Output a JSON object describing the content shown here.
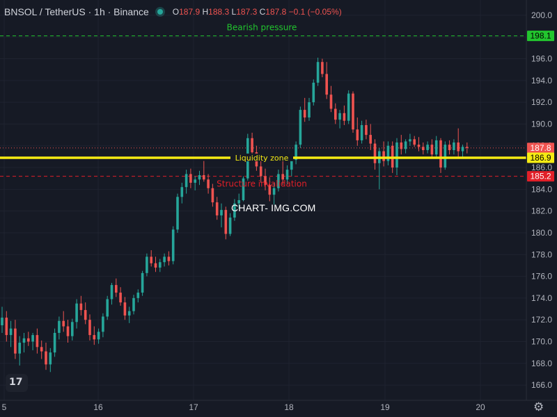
{
  "header": {
    "symbol": "BNSOL / TetherUS · 1h · Binance",
    "o_label": "O",
    "o_value": "187.9",
    "h_label": "H",
    "h_value": "188.3",
    "l_label": "L",
    "l_value": "187.3",
    "c_label": "C",
    "c_value": "187.8",
    "change": "−0.1 (−0.05%)",
    "status_icon": "market-open-dot"
  },
  "watermark": "CHART- IMG.COM",
  "logo_text": "17",
  "settings_icon": "gear-icon",
  "colors": {
    "background": "#161a25",
    "up": "#26a69a",
    "down": "#ef5350",
    "liquidity": "#f5eb13",
    "bearish": "#22c52e",
    "invalidation": "#e21f28"
  },
  "chart_data": {
    "type": "candlestick",
    "title": "BNSOL / TetherUS · 1h · Binance",
    "x_axis": {
      "ticks": [
        "5",
        "16",
        "17",
        "18",
        "19",
        "20"
      ]
    },
    "y_axis": {
      "range": [
        164.6,
        201.4
      ],
      "ticks": [
        "166.0",
        "168.0",
        "170.0",
        "172.0",
        "174.0",
        "176.0",
        "178.0",
        "180.0",
        "182.0",
        "184.0",
        "186.0",
        "188.0",
        "190.0",
        "192.0",
        "194.0",
        "196.0",
        "198.0",
        "200.0"
      ]
    },
    "price_labels": [
      {
        "value": "198.1",
        "price": 198.1,
        "color": "#22c52e",
        "text_color": "#000000"
      },
      {
        "value": "187.8",
        "price": 187.8,
        "color": "#ef5350",
        "text_color": "#ffffff"
      },
      {
        "value": "186.9",
        "price": 186.9,
        "color": "#f5eb13",
        "text_color": "#000000"
      },
      {
        "value": "185.2",
        "price": 185.2,
        "color": "#e21f28",
        "text_color": "#ffffff"
      }
    ],
    "levels": [
      {
        "label": "Bearish pressure",
        "price": 198.1,
        "style": "dashed",
        "color": "#22c52e"
      },
      {
        "label": "Liquidity zone",
        "price": 186.9,
        "style": "solid",
        "color": "#f5eb13"
      },
      {
        "label": "Structure invalidation",
        "price": 185.2,
        "style": "dashed",
        "color": "#e21f28"
      }
    ],
    "last_price": 187.8,
    "candles": [
      [
        171.5,
        173.2,
        170.8,
        172.2
      ],
      [
        172.2,
        172.8,
        170.0,
        170.6
      ],
      [
        170.6,
        171.9,
        169.5,
        171.2
      ],
      [
        171.2,
        172.0,
        168.4,
        168.9
      ],
      [
        168.9,
        170.5,
        167.8,
        169.9
      ],
      [
        169.9,
        170.8,
        169.0,
        170.3
      ],
      [
        170.3,
        170.9,
        169.6,
        170.0
      ],
      [
        170.0,
        170.8,
        169.2,
        170.6
      ],
      [
        170.6,
        171.2,
        168.9,
        169.5
      ],
      [
        169.5,
        170.1,
        168.4,
        169.1
      ],
      [
        169.1,
        169.9,
        167.4,
        167.9
      ],
      [
        167.9,
        169.4,
        167.2,
        169.0
      ],
      [
        169.0,
        171.2,
        168.6,
        170.8
      ],
      [
        170.8,
        172.3,
        170.2,
        171.9
      ],
      [
        171.9,
        172.8,
        170.9,
        171.4
      ],
      [
        171.4,
        172.0,
        169.9,
        170.5
      ],
      [
        170.5,
        172.1,
        170.1,
        171.8
      ],
      [
        171.8,
        173.9,
        171.2,
        173.5
      ],
      [
        173.5,
        174.2,
        172.4,
        172.9
      ],
      [
        172.9,
        173.6,
        171.6,
        172.0
      ],
      [
        172.0,
        172.5,
        170.1,
        170.6
      ],
      [
        170.6,
        171.4,
        169.7,
        170.2
      ],
      [
        170.2,
        171.2,
        169.8,
        170.9
      ],
      [
        170.9,
        172.6,
        170.4,
        172.3
      ],
      [
        172.3,
        174.2,
        172.0,
        173.9
      ],
      [
        173.9,
        175.4,
        173.4,
        175.2
      ],
      [
        175.2,
        175.8,
        174.1,
        174.5
      ],
      [
        174.5,
        175.0,
        173.3,
        173.6
      ],
      [
        173.6,
        174.1,
        172.0,
        172.4
      ],
      [
        172.4,
        173.2,
        171.7,
        172.8
      ],
      [
        172.8,
        174.3,
        172.5,
        174.0
      ],
      [
        174.0,
        174.8,
        173.6,
        174.5
      ],
      [
        174.5,
        176.5,
        174.2,
        176.3
      ],
      [
        176.3,
        178.1,
        176.0,
        177.8
      ],
      [
        177.8,
        178.4,
        176.9,
        177.2
      ],
      [
        177.2,
        177.8,
        176.4,
        176.8
      ],
      [
        176.8,
        177.6,
        176.4,
        177.3
      ],
      [
        177.3,
        178.1,
        176.9,
        177.8
      ],
      [
        177.8,
        178.3,
        177.0,
        177.4
      ],
      [
        177.4,
        180.6,
        177.1,
        180.3
      ],
      [
        180.3,
        183.6,
        180.0,
        183.3
      ],
      [
        183.3,
        184.6,
        182.7,
        184.2
      ],
      [
        184.2,
        185.8,
        183.6,
        185.4
      ],
      [
        185.4,
        185.9,
        184.1,
        184.6
      ],
      [
        184.6,
        185.2,
        183.9,
        184.9
      ],
      [
        184.9,
        185.7,
        184.4,
        185.3
      ],
      [
        185.3,
        186.6,
        184.7,
        184.9
      ],
      [
        184.9,
        185.4,
        183.6,
        184.1
      ],
      [
        184.1,
        184.5,
        182.4,
        182.8
      ],
      [
        182.8,
        183.3,
        181.2,
        181.6
      ],
      [
        181.6,
        182.7,
        180.5,
        182.1
      ],
      [
        182.1,
        182.4,
        179.4,
        179.9
      ],
      [
        179.9,
        181.8,
        179.7,
        181.4
      ],
      [
        181.4,
        183.1,
        181.1,
        182.7
      ],
      [
        182.7,
        183.6,
        182.2,
        183.0
      ],
      [
        183.0,
        185.2,
        182.9,
        185.0
      ],
      [
        185.0,
        189.1,
        184.8,
        188.7
      ],
      [
        188.7,
        189.2,
        186.9,
        187.4
      ],
      [
        187.4,
        188.0,
        185.7,
        186.1
      ],
      [
        186.1,
        186.9,
        184.6,
        185.2
      ],
      [
        185.2,
        185.9,
        183.9,
        184.4
      ],
      [
        184.4,
        185.1,
        182.9,
        183.5
      ],
      [
        183.5,
        184.6,
        182.6,
        184.1
      ],
      [
        184.1,
        185.8,
        183.8,
        185.4
      ],
      [
        185.4,
        186.7,
        184.4,
        184.9
      ],
      [
        184.9,
        186.2,
        184.5,
        185.8
      ],
      [
        185.8,
        187.1,
        185.2,
        186.7
      ],
      [
        186.7,
        188.4,
        186.3,
        188.1
      ],
      [
        188.1,
        191.6,
        187.8,
        191.3
      ],
      [
        191.3,
        192.4,
        190.2,
        190.6
      ],
      [
        190.6,
        192.4,
        190.3,
        192.0
      ],
      [
        192.0,
        194.1,
        191.7,
        193.8
      ],
      [
        193.8,
        196.1,
        193.5,
        195.7
      ],
      [
        195.7,
        196.0,
        194.3,
        194.6
      ],
      [
        194.6,
        195.7,
        192.3,
        192.7
      ],
      [
        192.7,
        193.5,
        191.1,
        191.4
      ],
      [
        191.4,
        191.9,
        190.0,
        190.4
      ],
      [
        190.4,
        191.3,
        189.6,
        191.0
      ],
      [
        191.0,
        191.7,
        189.9,
        190.3
      ],
      [
        190.3,
        193.1,
        190.0,
        192.8
      ],
      [
        192.8,
        193.0,
        189.2,
        189.5
      ],
      [
        189.5,
        190.6,
        188.0,
        188.5
      ],
      [
        188.5,
        190.3,
        188.2,
        189.9
      ],
      [
        189.9,
        190.4,
        188.6,
        189.0
      ],
      [
        189.0,
        190.0,
        187.6,
        188.2
      ],
      [
        188.2,
        188.6,
        185.8,
        186.4
      ],
      [
        186.4,
        187.8,
        184.0,
        187.5
      ],
      [
        187.5,
        188.4,
        186.1,
        186.6
      ],
      [
        186.6,
        188.4,
        186.2,
        188.0
      ],
      [
        188.0,
        188.4,
        185.5,
        186.0
      ],
      [
        186.0,
        188.7,
        185.3,
        188.3
      ],
      [
        188.3,
        189.0,
        187.2,
        187.7
      ],
      [
        187.7,
        188.6,
        187.3,
        188.4
      ],
      [
        188.4,
        189.1,
        188.0,
        188.6
      ],
      [
        188.6,
        188.9,
        187.9,
        188.1
      ],
      [
        188.1,
        188.8,
        187.5,
        187.9
      ],
      [
        187.9,
        188.3,
        187.2,
        187.6
      ],
      [
        187.6,
        188.4,
        187.3,
        188.1
      ],
      [
        188.1,
        188.6,
        186.8,
        187.2
      ],
      [
        187.2,
        188.9,
        187.0,
        188.5
      ],
      [
        188.5,
        188.7,
        185.5,
        186.0
      ],
      [
        186.0,
        188.4,
        185.8,
        188.1
      ],
      [
        188.1,
        188.5,
        187.2,
        187.6
      ],
      [
        187.6,
        188.6,
        187.2,
        188.3
      ],
      [
        188.3,
        189.6,
        187.0,
        187.5
      ],
      [
        187.5,
        188.1,
        186.8,
        187.9
      ],
      [
        187.9,
        188.3,
        187.3,
        187.8
      ]
    ]
  }
}
